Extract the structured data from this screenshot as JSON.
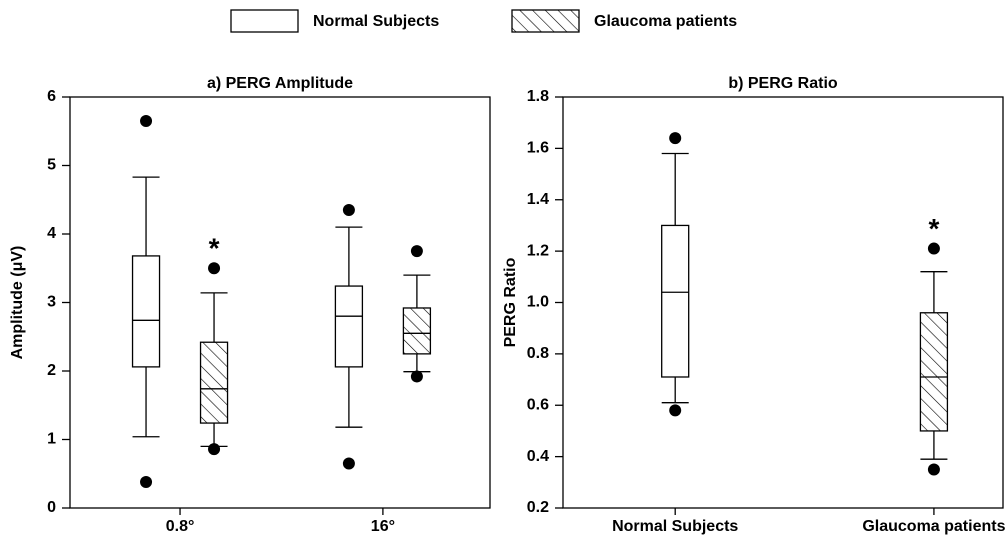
{
  "chart_data": [
    {
      "type": "box",
      "title": "a) PERG Amplitude",
      "y_label": "Amplitude (μV)",
      "categories": [
        "0.8°",
        "16°"
      ],
      "ylim": [
        0,
        6
      ],
      "yticks": [
        0,
        1,
        2,
        3,
        4,
        5,
        6
      ],
      "series": [
        {
          "name": "Normal Subjects",
          "color": "#ffffff",
          "pattern": "none",
          "boxes": [
            {
              "whislo": 1.04,
              "q1": 2.06,
              "med": 2.74,
              "q3": 3.68,
              "whishi": 4.83,
              "fliers": [
                5.65,
                0.38
              ]
            },
            {
              "whislo": 1.18,
              "q1": 2.06,
              "med": 2.8,
              "q3": 3.24,
              "whishi": 4.1,
              "fliers": [
                4.35,
                0.65
              ]
            }
          ]
        },
        {
          "name": "Glaucoma patients",
          "color": "#ffffff",
          "pattern": "hatch",
          "boxes": [
            {
              "whislo": 0.9,
              "q1": 1.24,
              "med": 1.74,
              "q3": 2.42,
              "whishi": 3.14,
              "fliers": [
                3.5,
                0.86
              ]
            },
            {
              "whislo": 1.99,
              "q1": 2.25,
              "med": 2.55,
              "q3": 2.92,
              "whishi": 3.4,
              "fliers": [
                3.75,
                1.92
              ]
            }
          ]
        }
      ],
      "annotations": [
        {
          "text": "*",
          "category": 0,
          "series": 1
        }
      ]
    },
    {
      "type": "box",
      "title": "b) PERG Ratio",
      "y_label": "PERG Ratio",
      "categories": [
        "Normal Subjects",
        "Glaucoma patients"
      ],
      "ylim": [
        0.2,
        1.8
      ],
      "yticks": [
        0.2,
        0.4,
        0.6,
        0.8,
        {
          "value": 1,
          "label": "1.0"
        },
        1.2,
        1.4,
        1.6,
        1.8
      ],
      "patterns": [
        "none",
        "hatch"
      ],
      "color": "#ffffff",
      "boxes": [
        {
          "whislo": 0.61,
          "q1": 0.71,
          "med": 1.04,
          "q3": 1.3,
          "whishi": 1.58,
          "fliers": [
            1.64,
            0.58
          ]
        },
        {
          "whislo": 0.39,
          "q1": 0.5,
          "med": 0.71,
          "q3": 0.96,
          "whishi": 1.12,
          "fliers": [
            1.21,
            0.35
          ]
        }
      ],
      "annotations": [
        {
          "text": "*",
          "category": 1
        }
      ]
    }
  ]
}
